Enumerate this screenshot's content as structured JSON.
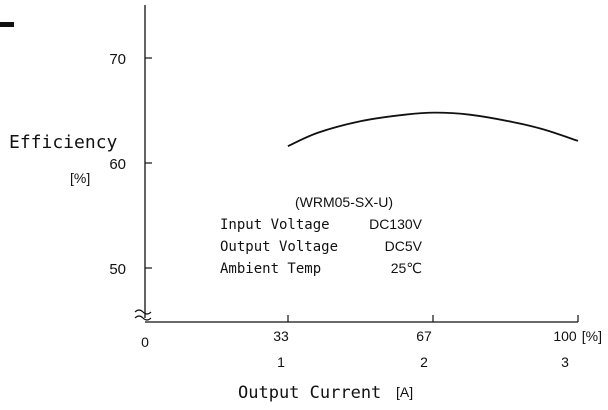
{
  "chart_data": {
    "type": "line",
    "xlabel": "Output Current",
    "xlabel_unit": "[A]",
    "ylabel": "Efficiency",
    "ylabel_unit": "[%]",
    "x_axis_percent": {
      "ticks": [
        "33",
        "67",
        "100"
      ],
      "unit": "[%]",
      "range": [
        0,
        100
      ]
    },
    "x_axis_amps": {
      "ticks": [
        "1",
        "2",
        "3"
      ],
      "range": [
        0,
        3
      ]
    },
    "origin_label": "0",
    "y_ticks": [
      {
        "value": 50,
        "label": "50"
      },
      {
        "value": 60,
        "label": "60"
      },
      {
        "value": 70,
        "label": "70"
      }
    ],
    "y_axis_break": true,
    "series": [
      {
        "x": [
          33,
          40,
          50,
          60,
          67,
          75,
          85,
          92,
          100
        ],
        "y": [
          61.6,
          62.9,
          64.0,
          64.6,
          64.8,
          64.6,
          63.9,
          63.2,
          62.1
        ]
      }
    ],
    "annotation": {
      "model": "(WRM05-SX-U)",
      "rows": [
        {
          "label": "Input Voltage",
          "value": "DC130V"
        },
        {
          "label": "Output Voltage",
          "value": "DC5V"
        },
        {
          "label": "Ambient Temp",
          "value": "25℃"
        }
      ]
    },
    "line_color": "#111111"
  }
}
